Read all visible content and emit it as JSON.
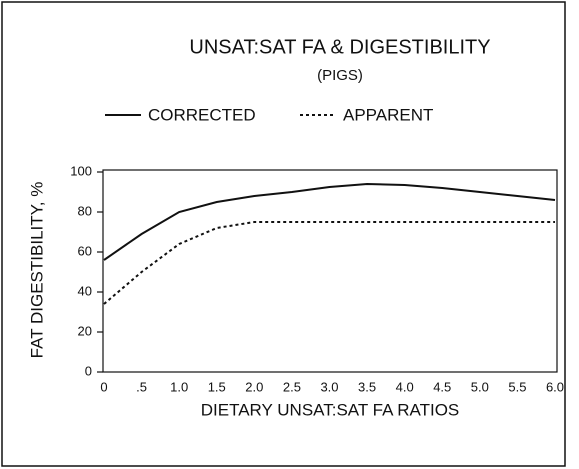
{
  "chart_data": {
    "type": "line",
    "title": "UNSAT:SAT FA & DIGESTIBILITY",
    "subtitle": "(PIGS)",
    "x_label": "DIETARY UNSAT:SAT FA RATIOS",
    "y_label": "FAT DIGESTIBILITY, %",
    "x": [
      0,
      0.5,
      1,
      1.5,
      2,
      2.5,
      3,
      3.5,
      4,
      4.5,
      5,
      5.5,
      6
    ],
    "series": [
      {
        "name": "CORRECTED",
        "color": "#111111",
        "style": "solid",
        "values": [
          56,
          69,
          80,
          85,
          88,
          90,
          92.5,
          94,
          93.5,
          92,
          90,
          88,
          86
        ]
      },
      {
        "name": "APPARENT",
        "color": "#111111",
        "style": "dashed",
        "values": [
          34,
          50,
          64,
          72,
          75,
          75,
          75,
          75,
          75,
          75,
          75,
          75,
          75
        ]
      }
    ],
    "xlim": [
      0,
      6
    ],
    "ylim": [
      0,
      100
    ],
    "xticks": [
      0,
      {
        "value": 0.5,
        "label": ".5"
      },
      {
        "value": 1,
        "label": "1.0"
      },
      1.5,
      {
        "value": 2,
        "label": "2.0"
      },
      2.5,
      {
        "value": 3,
        "label": "3.0"
      },
      3.5,
      {
        "value": 4,
        "label": "4.0"
      },
      4.5,
      {
        "value": 5,
        "label": "5.0"
      },
      5.5,
      {
        "value": 6,
        "label": "6.0"
      }
    ],
    "yticks": [
      0,
      20,
      40,
      60,
      80,
      100
    ],
    "grid": false
  }
}
